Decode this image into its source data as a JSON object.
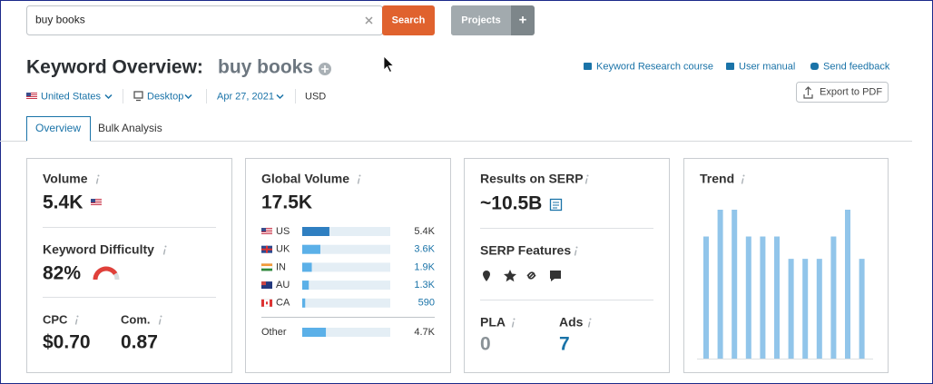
{
  "search": {
    "query": "buy books",
    "button": "Search",
    "projects": "Projects",
    "add": "+"
  },
  "header": {
    "title": "Keyword Overview:",
    "keyword": "buy books",
    "links": [
      "Keyword Research course",
      "User manual",
      "Send feedback"
    ],
    "export": "Export to PDF"
  },
  "filters": [
    "United States",
    "Desktop",
    "Apr 27, 2021",
    "USD"
  ],
  "tabs": [
    "Overview",
    "Bulk Analysis"
  ],
  "volume": {
    "label": "Volume",
    "value": "5.4K"
  },
  "difficulty": {
    "label": "Keyword Difficulty",
    "value": 82,
    "value_label": "82%"
  },
  "cpc": {
    "label": "CPC",
    "value": "$0.70"
  },
  "competition": {
    "label": "Com.",
    "value": "0.87"
  },
  "global_volume": {
    "label": "Global Volume",
    "value": 17500,
    "value_label": "17.5K",
    "rows": [
      {
        "country": "US",
        "value": 5400,
        "value_label": "5.4K"
      },
      {
        "country": "UK",
        "value": 3600,
        "value_label": "3.6K"
      },
      {
        "country": "IN",
        "value": 1900,
        "value_label": "1.9K"
      },
      {
        "country": "AU",
        "value": 1300,
        "value_label": "1.3K"
      },
      {
        "country": "CA",
        "value": 590
      },
      {
        "country": "Other",
        "value": 4700,
        "value_label": "4.7K"
      }
    ]
  },
  "serp": {
    "label": "Results on SERP",
    "value": "~10.5B",
    "features_label": "SERP Features"
  },
  "pla": {
    "label": "PLA",
    "value": "0"
  },
  "ads": {
    "label": "Ads",
    "value": "7"
  },
  "trend": {
    "label": "Trend",
    "values": [
      82,
      100,
      100,
      82,
      82,
      82,
      67,
      67,
      67,
      82,
      100,
      67
    ]
  }
}
